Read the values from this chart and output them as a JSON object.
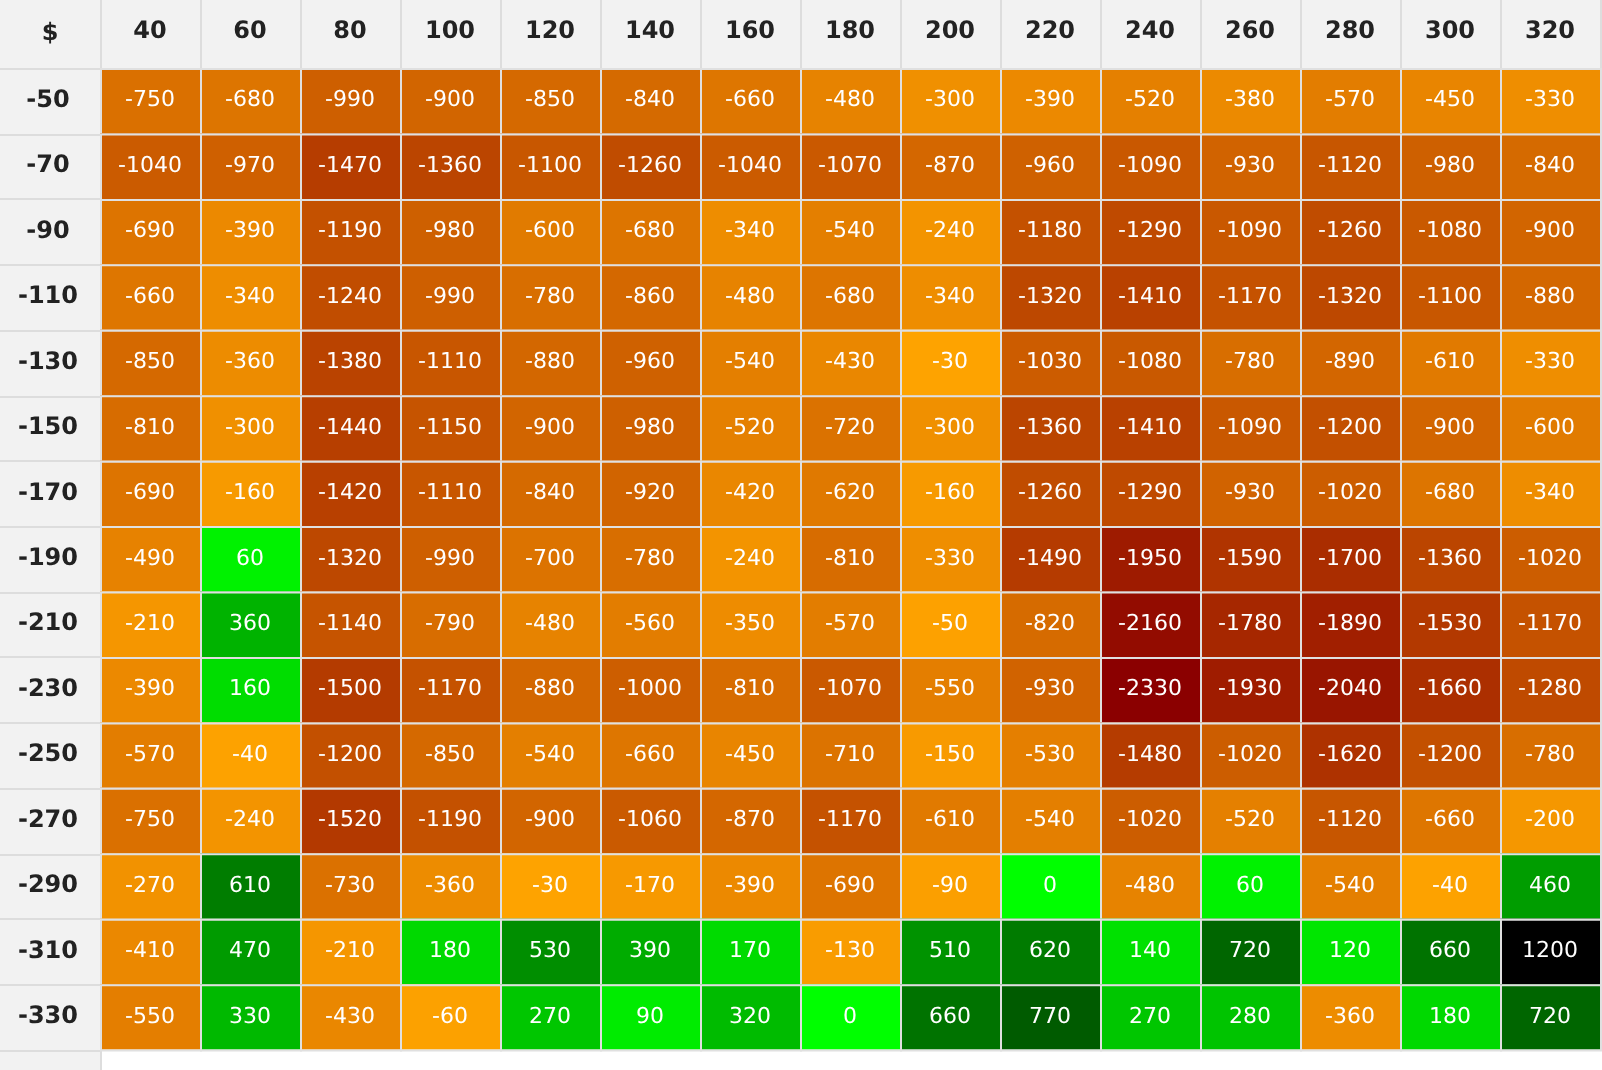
{
  "chart_data": {
    "type": "heatmap",
    "ylabel": "$",
    "categories": [
      "40",
      "60",
      "80",
      "100",
      "120",
      "140",
      "160",
      "180",
      "200",
      "220",
      "240",
      "260",
      "280",
      "300",
      "320"
    ],
    "y_categories": [
      "-50",
      "-70",
      "-90",
      "-110",
      "-130",
      "-150",
      "-170",
      "-190",
      "-210",
      "-230",
      "-250",
      "-270",
      "-290",
      "-310",
      "-330"
    ],
    "cells": [
      [
        -750,
        -680,
        -990,
        -900,
        -850,
        -840,
        -660,
        -480,
        -300,
        -390,
        -520,
        -380,
        -570,
        -450,
        -330
      ],
      [
        -1040,
        -970,
        -1470,
        -1360,
        -1100,
        -1260,
        -1040,
        -1070,
        -870,
        -960,
        -1090,
        -930,
        -1120,
        -980,
        -840
      ],
      [
        -690,
        -390,
        -1190,
        -980,
        -600,
        -680,
        -340,
        -540,
        -240,
        -1180,
        -1290,
        -1090,
        -1260,
        -1080,
        -900
      ],
      [
        -660,
        -340,
        -1240,
        -990,
        -780,
        -860,
        -480,
        -680,
        -340,
        -1320,
        -1410,
        -1170,
        -1320,
        -1100,
        -880
      ],
      [
        -850,
        -360,
        -1380,
        -1110,
        -880,
        -960,
        -540,
        -430,
        -30,
        -1030,
        -1080,
        -780,
        -890,
        -610,
        -330
      ],
      [
        -810,
        -300,
        -1440,
        -1150,
        -900,
        -980,
        -520,
        -720,
        -300,
        -1360,
        -1410,
        -1090,
        -1200,
        -900,
        -600
      ],
      [
        -690,
        -160,
        -1420,
        -1110,
        -840,
        -920,
        -420,
        -620,
        -160,
        -1260,
        -1290,
        -930,
        -1020,
        -680,
        -340
      ],
      [
        -490,
        60,
        -1320,
        -990,
        -700,
        -780,
        -240,
        -810,
        -330,
        -1490,
        -1950,
        -1590,
        -1700,
        -1360,
        -1020
      ],
      [
        -210,
        360,
        -1140,
        -790,
        -480,
        -560,
        -350,
        -570,
        -50,
        -820,
        -2160,
        -1780,
        -1890,
        -1530,
        -1170
      ],
      [
        -390,
        160,
        -1500,
        -1170,
        -880,
        -1000,
        -810,
        -1070,
        -550,
        -930,
        -2330,
        -1930,
        -2040,
        -1660,
        -1280
      ],
      [
        -570,
        -40,
        -1200,
        -850,
        -540,
        -660,
        -450,
        -710,
        -150,
        -530,
        -1480,
        -1020,
        -1620,
        -1200,
        -780
      ],
      [
        -750,
        -240,
        -1520,
        -1190,
        -900,
        -1060,
        -870,
        -1170,
        -610,
        -540,
        -1020,
        -520,
        -1120,
        -660,
        -200
      ],
      [
        -270,
        610,
        -730,
        -360,
        -30,
        -170,
        -390,
        -690,
        -90,
        0,
        -480,
        60,
        -540,
        -40,
        460
      ],
      [
        -410,
        470,
        -210,
        180,
        530,
        390,
        170,
        -130,
        510,
        620,
        140,
        720,
        120,
        660,
        1200
      ],
      [
        -550,
        330,
        -430,
        -60,
        270,
        90,
        320,
        0,
        660,
        770,
        270,
        280,
        -360,
        180,
        720
      ]
    ],
    "data_labels": true
  }
}
